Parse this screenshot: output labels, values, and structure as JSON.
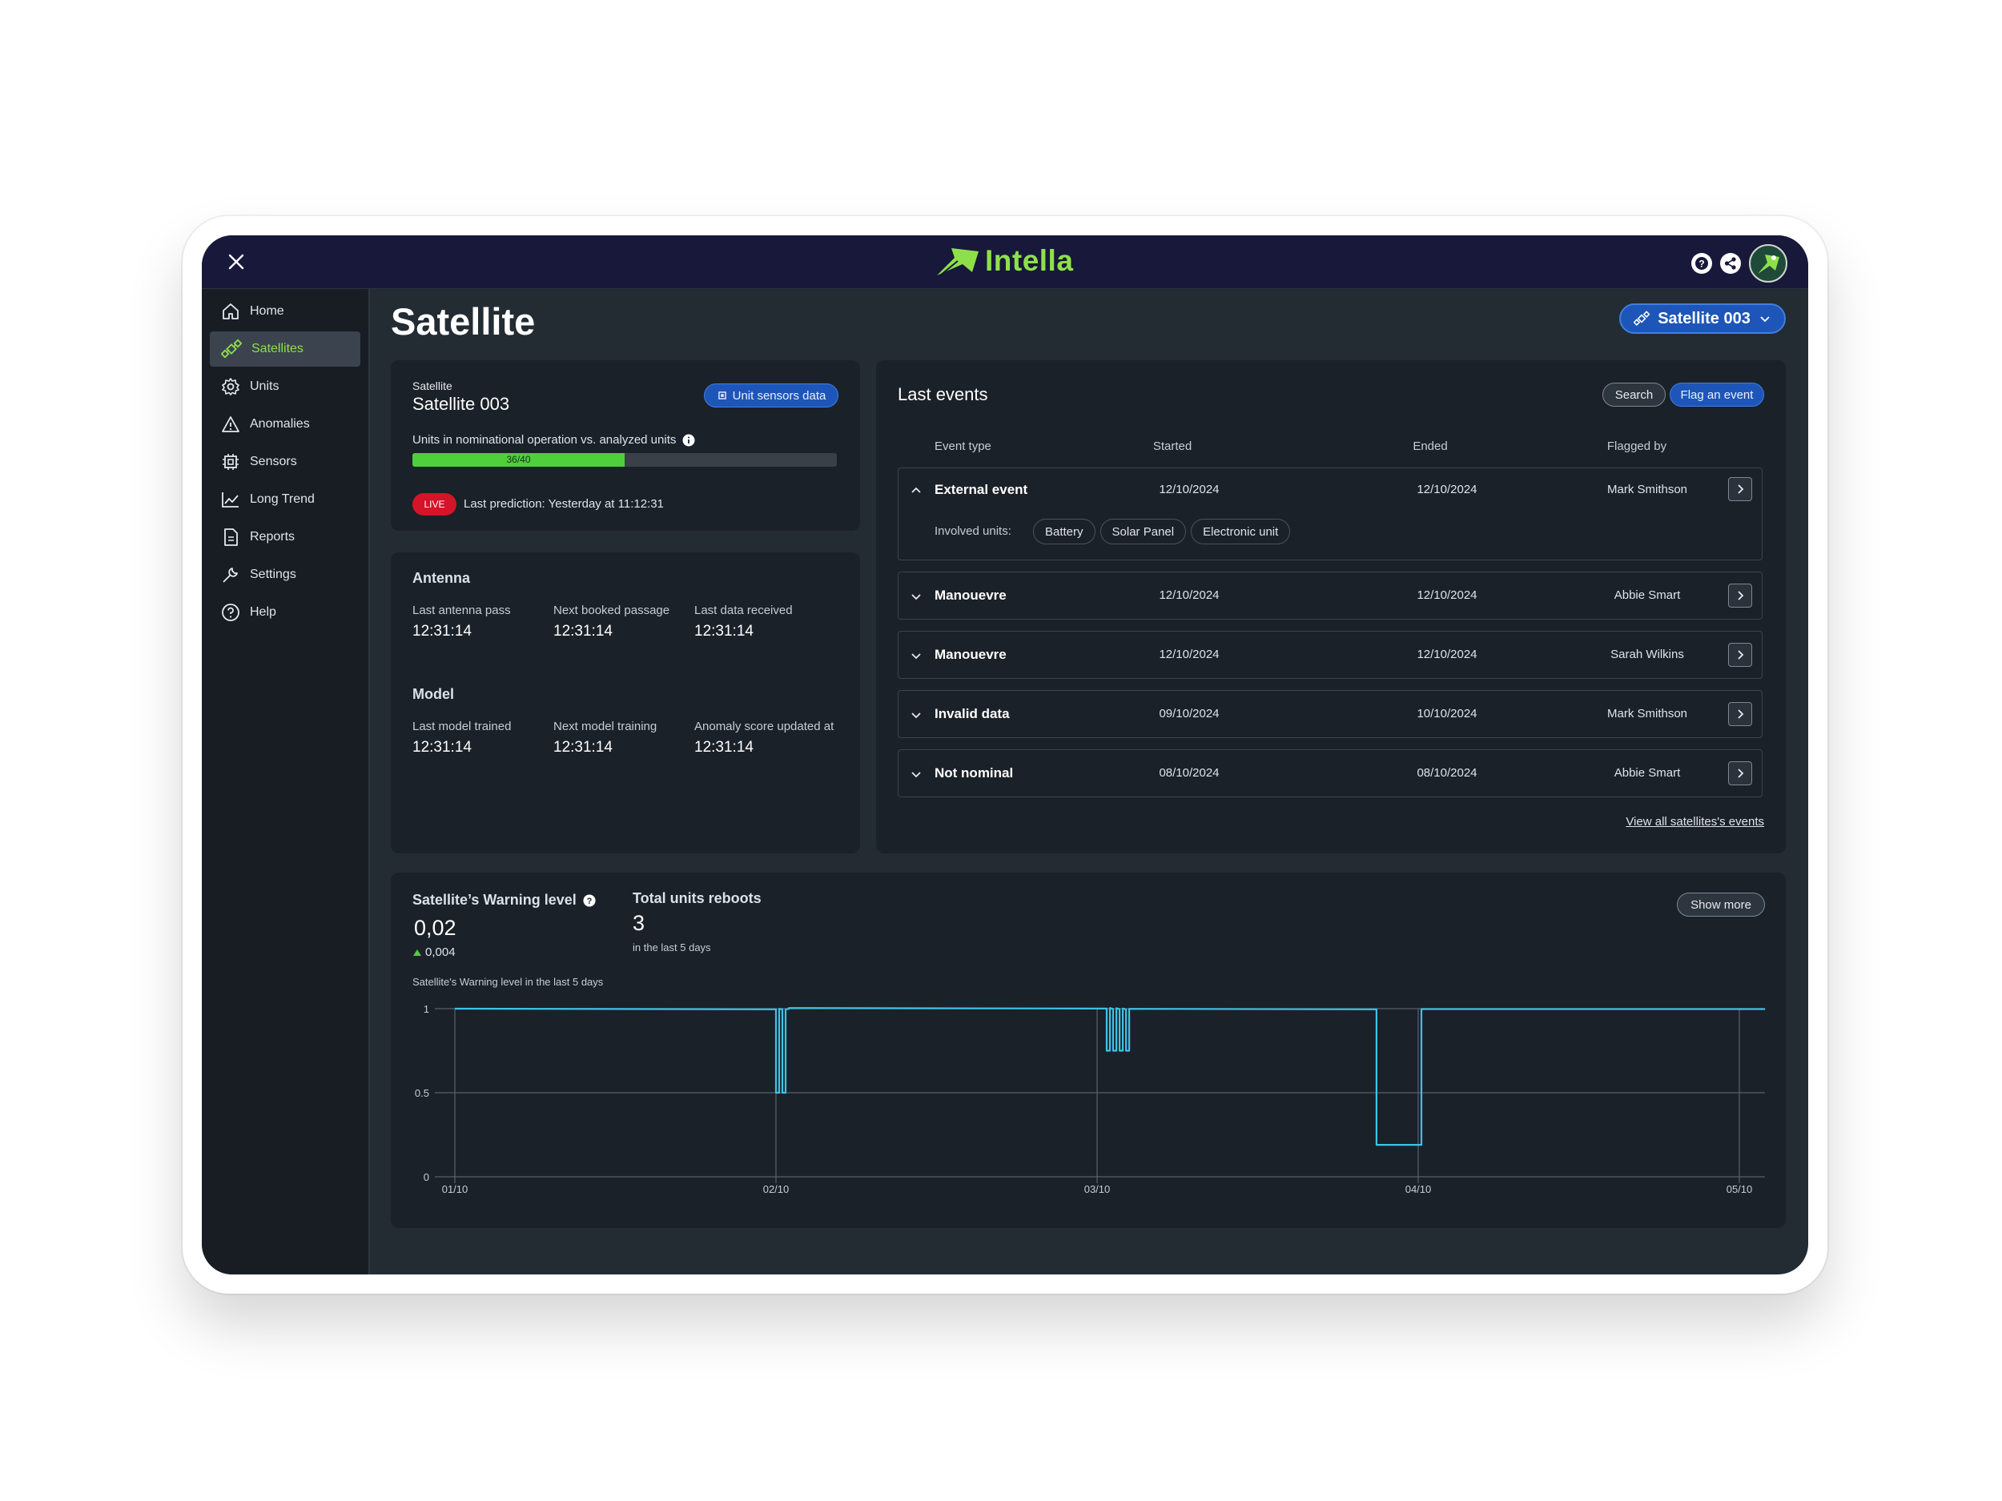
{
  "app": {
    "name": "Intella"
  },
  "sidebar": {
    "items": [
      {
        "label": "Home",
        "icon": "home-icon",
        "active": false
      },
      {
        "label": "Satellites",
        "icon": "satellite-icon",
        "active": true
      },
      {
        "label": "Units",
        "icon": "gear-icon",
        "active": false
      },
      {
        "label": "Anomalies",
        "icon": "warning-icon",
        "active": false
      },
      {
        "label": "Sensors",
        "icon": "chip-icon",
        "active": false
      },
      {
        "label": "Long Trend",
        "icon": "trend-icon",
        "active": false
      },
      {
        "label": "Reports",
        "icon": "document-icon",
        "active": false
      },
      {
        "label": "Settings",
        "icon": "wrench-icon",
        "active": false
      },
      {
        "label": "Help",
        "icon": "help-icon",
        "active": false
      }
    ]
  },
  "page": {
    "title": "Satellite"
  },
  "selector": {
    "value": "Satellite 003"
  },
  "satellite_card": {
    "label": "Satellite",
    "name": "Satellite 003",
    "button": "Unit sensors data",
    "nominal_label": "Units in nominational operation vs. analyzed units",
    "progress": {
      "value": 36,
      "total": 40,
      "text": "36/40"
    },
    "live": "LIVE",
    "last_prediction": "Last prediction: Yesterday at 11:12:31"
  },
  "antenna": {
    "title": "Antenna",
    "fields": [
      {
        "label": "Last antenna pass",
        "value": "12:31:14"
      },
      {
        "label": "Next booked passage",
        "value": "12:31:14"
      },
      {
        "label": "Last data received",
        "value": "12:31:14"
      }
    ]
  },
  "model": {
    "title": "Model",
    "fields": [
      {
        "label": "Last model trained",
        "value": "12:31:14"
      },
      {
        "label": "Next model training",
        "value": "12:31:14"
      },
      {
        "label": "Anomaly score updated at",
        "value": "12:31:14"
      }
    ]
  },
  "events": {
    "title": "Last events",
    "search": "Search",
    "flag": "Flag an event",
    "columns": [
      "Event type",
      "Started",
      "Ended",
      "Flagged by"
    ],
    "involved_label": "Involved units:",
    "rows": [
      {
        "type": "External event",
        "started": "12/10/2024",
        "ended": "12/10/2024",
        "flagged_by": "Mark Smithson",
        "expanded": true,
        "units": [
          "Battery",
          "Solar Panel",
          "Electronic unit"
        ]
      },
      {
        "type": "Manouevre",
        "started": "12/10/2024",
        "ended": "12/10/2024",
        "flagged_by": "Abbie Smart",
        "expanded": false
      },
      {
        "type": "Manouevre",
        "started": "12/10/2024",
        "ended": "12/10/2024",
        "flagged_by": "Sarah Wilkins",
        "expanded": false
      },
      {
        "type": "Invalid data",
        "started": "09/10/2024",
        "ended": "10/10/2024",
        "flagged_by": "Mark Smithson",
        "expanded": false
      },
      {
        "type": "Not nominal",
        "started": "08/10/2024",
        "ended": "08/10/2024",
        "flagged_by": "Abbie Smart",
        "expanded": false
      }
    ],
    "view_all": "View all satellites's events"
  },
  "warning": {
    "title": "Satellite’s Warning level",
    "value": "0,02",
    "delta": "0,004",
    "reboots_title": "Total units reboots",
    "reboots_value": "3",
    "reboots_sub": "in the last 5 days",
    "show_more": "Show more",
    "chart_caption": "Satellite's Warning level in the last 5 days"
  },
  "colors": {
    "accent_green": "#8ee04a",
    "brand_blue": "#1d56b8",
    "line_cyan": "#3ec3e6",
    "live_red": "#d41428",
    "progress_green": "#4fcf3c"
  },
  "chart_data": {
    "type": "line",
    "title": "",
    "xlabel": "",
    "ylabel": "",
    "x_ticks": [
      "01/10",
      "02/10",
      "03/10",
      "04/10",
      "05/10"
    ],
    "y_ticks": [
      "0",
      "0.5",
      "1"
    ],
    "xlim": [
      0,
      4.08
    ],
    "ylim": [
      0,
      1
    ],
    "grid": true,
    "series": [
      {
        "x": [
          0,
          1.0,
          1.0,
          1.01,
          1.01,
          1.02,
          1.02,
          1.03,
          1.03,
          1.04,
          1.04,
          2.03,
          2.03,
          2.04,
          2.04,
          2.05,
          2.05,
          2.06,
          2.06,
          2.07,
          2.07,
          2.08,
          2.08,
          2.09,
          2.09,
          2.1,
          2.1,
          2.87,
          2.87,
          3.01,
          3.01,
          4.08
        ],
        "y": [
          1,
          1,
          0.5,
          0.5,
          1,
          1,
          0.5,
          0.5,
          1,
          1,
          1,
          1,
          0.75,
          0.75,
          1,
          1,
          0.75,
          0.75,
          1,
          1,
          0.75,
          0.75,
          1,
          1,
          0.75,
          0.75,
          1,
          1,
          0.19,
          0.19,
          1,
          1
        ]
      }
    ]
  }
}
